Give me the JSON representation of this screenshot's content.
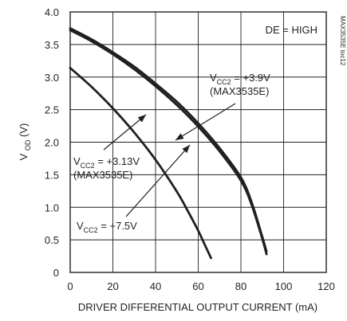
{
  "chart_data": {
    "type": "line",
    "title": "",
    "xlabel": "DRIVER DIFFERENTIAL OUTPUT CURRENT (mA)",
    "ylabel": {
      "base": "V",
      "sub": "OD",
      "suffix": " (V)"
    },
    "xlim": [
      0,
      120
    ],
    "ylim": [
      0,
      4.0
    ],
    "x_ticks": [
      0,
      20,
      40,
      60,
      80,
      100,
      120
    ],
    "y_ticks": [
      0,
      0.5,
      1.0,
      1.5,
      2.0,
      2.5,
      3.0,
      3.5,
      4.0
    ],
    "x_tick_labels": [
      "0",
      "20",
      "40",
      "60",
      "80",
      "100",
      "120"
    ],
    "y_tick_labels": [
      "0",
      "0.5",
      "1.0",
      "1.5",
      "2.0",
      "2.5",
      "3.0",
      "3.5",
      "4.0"
    ],
    "grid": true,
    "condition_label": "DE = HIGH",
    "figure_id": "MAX3535E toc12",
    "series": [
      {
        "label": {
          "base": "V",
          "sub": "CC2",
          "value": " = +3.9V",
          "note": "(MAX3535E)"
        },
        "x": [
          0,
          10,
          20,
          30,
          40,
          50,
          60,
          70,
          80,
          85,
          90,
          92
        ],
        "y": [
          3.75,
          3.58,
          3.38,
          3.16,
          2.9,
          2.62,
          2.29,
          1.91,
          1.46,
          1.08,
          0.55,
          0.32
        ]
      },
      {
        "label": {
          "base": "V",
          "sub": "CC2",
          "value": " = +3.13V",
          "note": "(MAX3535E)"
        },
        "x": [
          0,
          10,
          20,
          30,
          40,
          50,
          60,
          70,
          80,
          85,
          90,
          92
        ],
        "y": [
          3.72,
          3.55,
          3.35,
          3.12,
          2.86,
          2.57,
          2.24,
          1.86,
          1.41,
          1.04,
          0.52,
          0.28
        ]
      },
      {
        "label": {
          "base": "V",
          "sub": "CC2",
          "value": " = +7.5V",
          "note": ""
        },
        "x": [
          0,
          10,
          20,
          30,
          40,
          50,
          55,
          60,
          63,
          66
        ],
        "y": [
          3.14,
          2.85,
          2.52,
          2.15,
          1.73,
          1.24,
          0.95,
          0.64,
          0.43,
          0.22
        ]
      }
    ]
  }
}
